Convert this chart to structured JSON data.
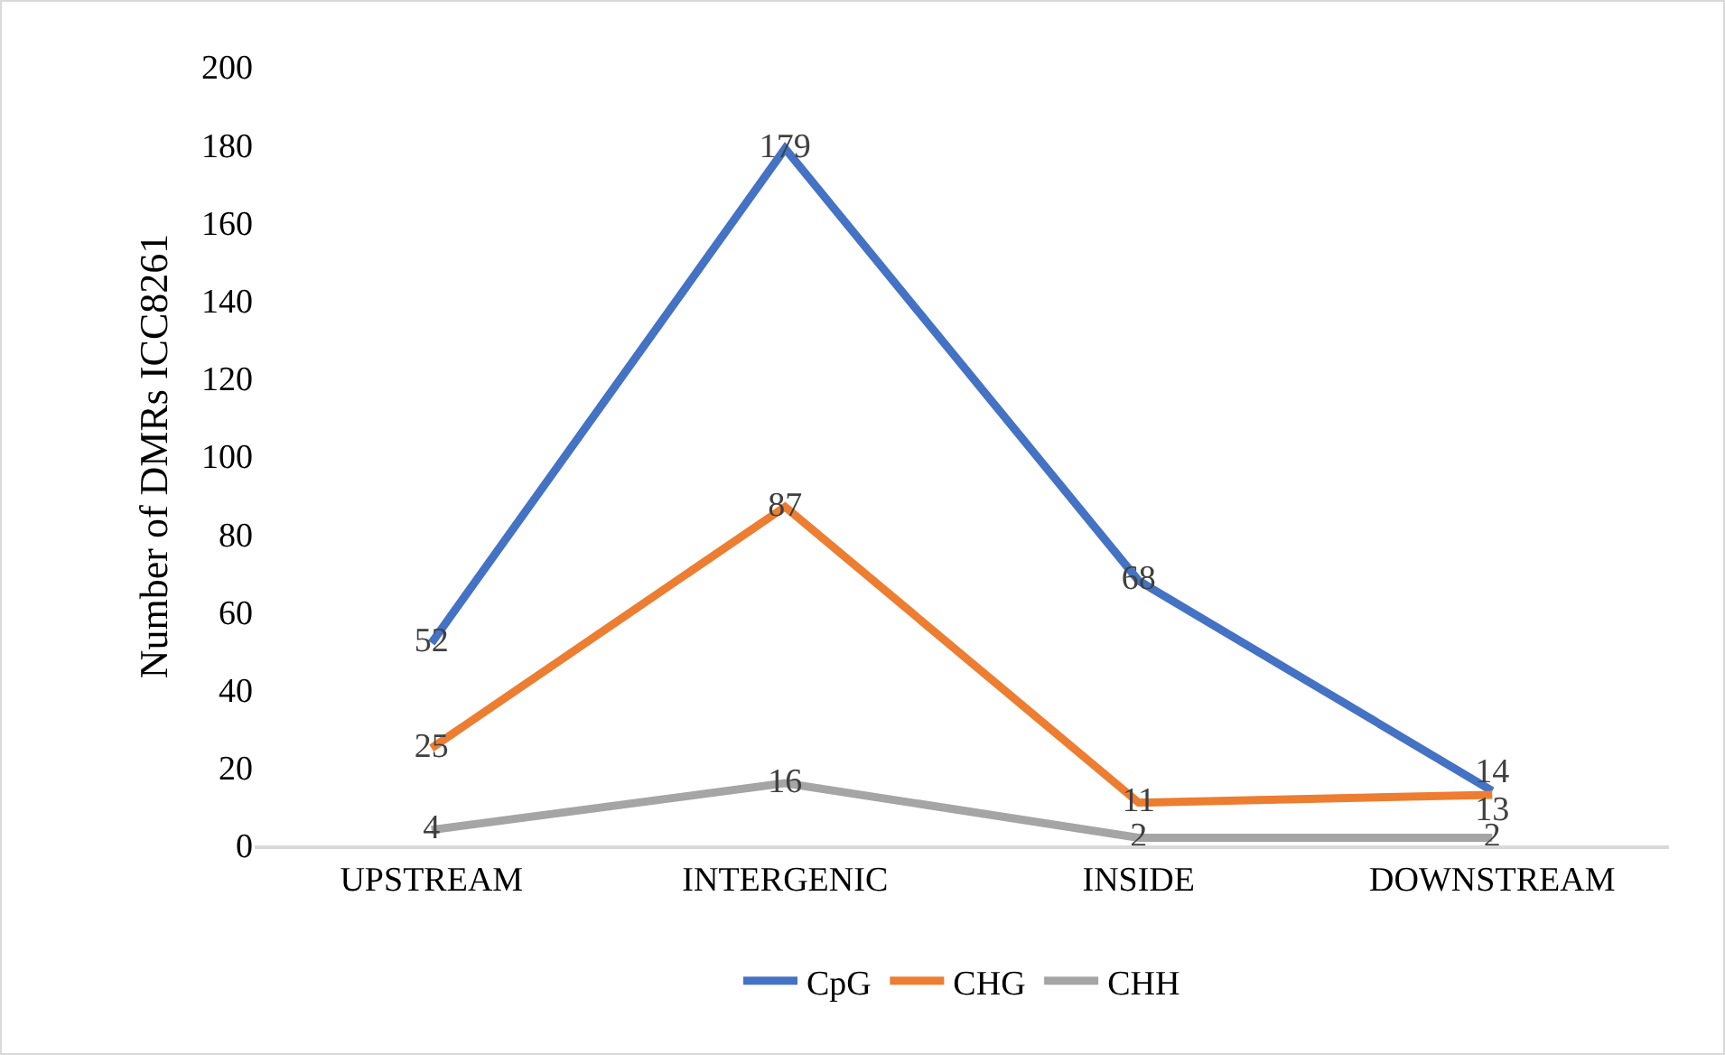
{
  "chart_data": {
    "type": "line",
    "ylabel": "Number of DMRs ICC8261",
    "categories": [
      "UPSTREAM",
      "INTERGENIC",
      "INSIDE",
      "DOWNSTREAM"
    ],
    "series": [
      {
        "name": "CpG",
        "color": "#4472c4",
        "values": [
          52,
          179,
          68,
          14
        ]
      },
      {
        "name": "CHG",
        "color": "#ed7d31",
        "values": [
          25,
          87,
          11,
          13
        ]
      },
      {
        "name": "CHH",
        "color": "#a5a5a5",
        "values": [
          4,
          16,
          2,
          2
        ]
      }
    ],
    "ylim": [
      0,
      200
    ],
    "yticks": [
      0,
      20,
      40,
      60,
      80,
      100,
      120,
      140,
      160,
      180,
      200
    ],
    "grid": false,
    "legend": "bottom",
    "marker": "none",
    "line_style": "solid",
    "data_labels": true
  }
}
